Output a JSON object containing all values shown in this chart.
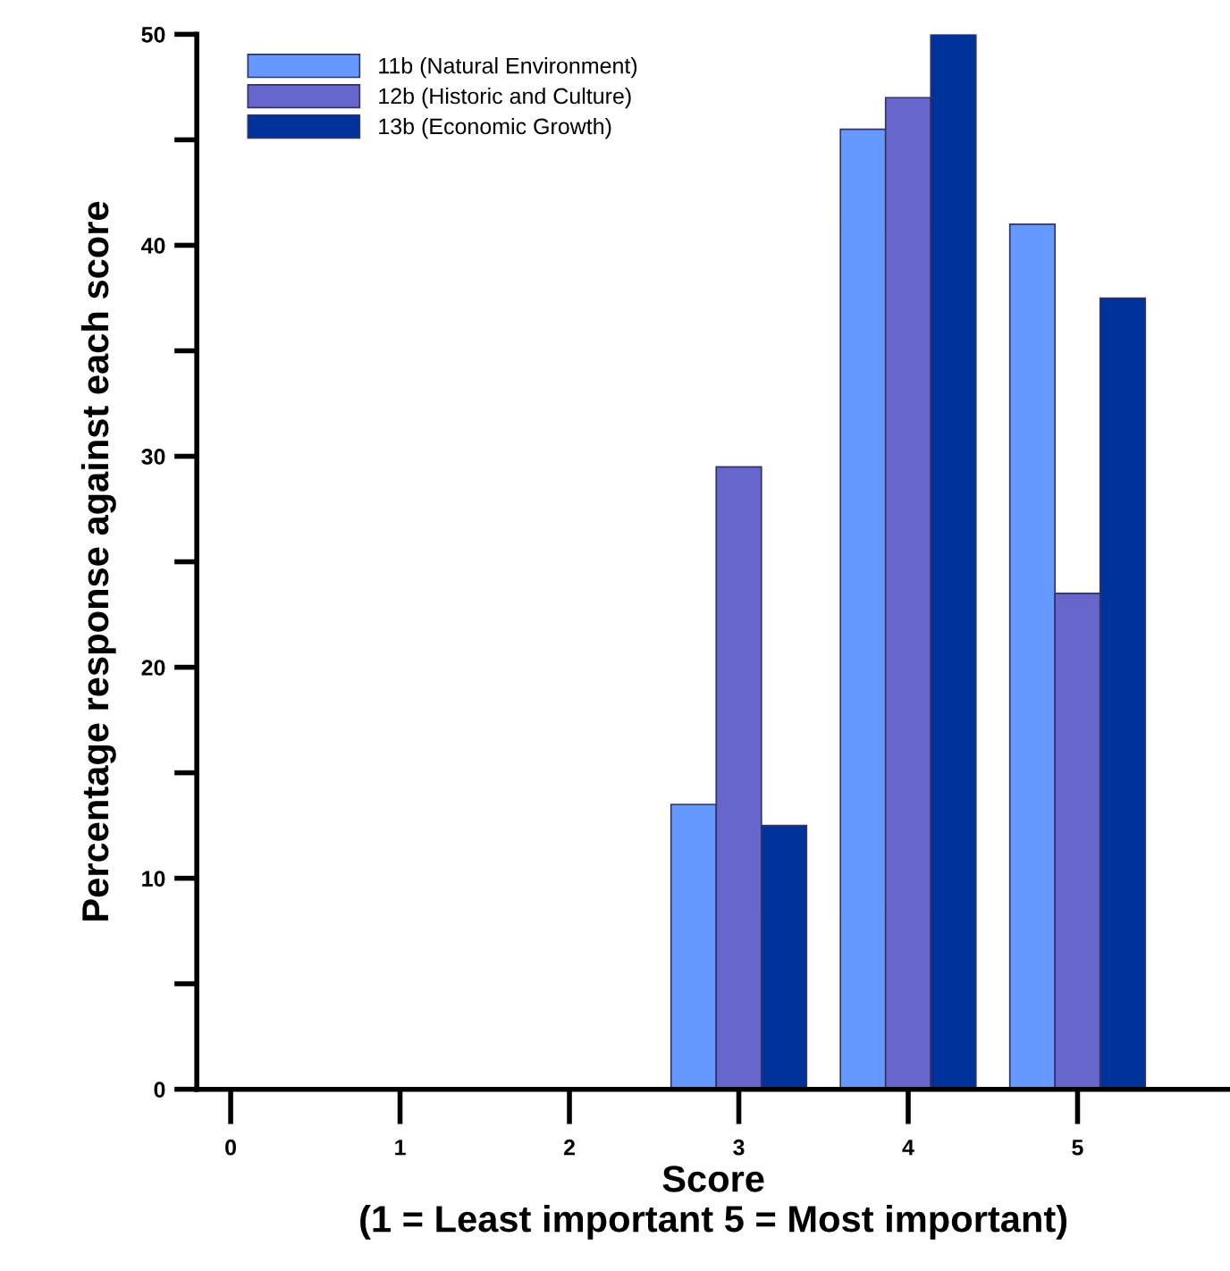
{
  "chart_data": {
    "type": "bar",
    "xlabel": "Score\n(1 = Least important 5 = Most important)",
    "ylabel": "Percentage response against each score",
    "x": [
      3,
      4,
      5
    ],
    "series": [
      {
        "name": "11b (Natural Environment)",
        "color": "#6699ff",
        "values": [
          13.5,
          45.5,
          41
        ]
      },
      {
        "name": "12b (Historic and Culture)",
        "color": "#6666cc",
        "values": [
          29.5,
          47,
          23.5
        ]
      },
      {
        "name": "13b (Economic Growth)",
        "color": "#003399",
        "values": [
          12.5,
          50,
          37.5
        ]
      }
    ],
    "xlim": [
      -0.2,
      5.9
    ],
    "xticks": [
      0,
      1,
      2,
      3,
      4,
      5
    ],
    "ylim": [
      0,
      50
    ],
    "yticks": [
      0,
      {
        "value": 5,
        "label": null
      },
      10,
      {
        "value": 15,
        "label": null
      },
      20,
      {
        "value": 25,
        "label": null
      },
      30,
      {
        "value": 35,
        "label": null
      },
      40,
      {
        "value": 45,
        "label": null
      },
      50
    ],
    "grid": false,
    "legend": "top left"
  }
}
